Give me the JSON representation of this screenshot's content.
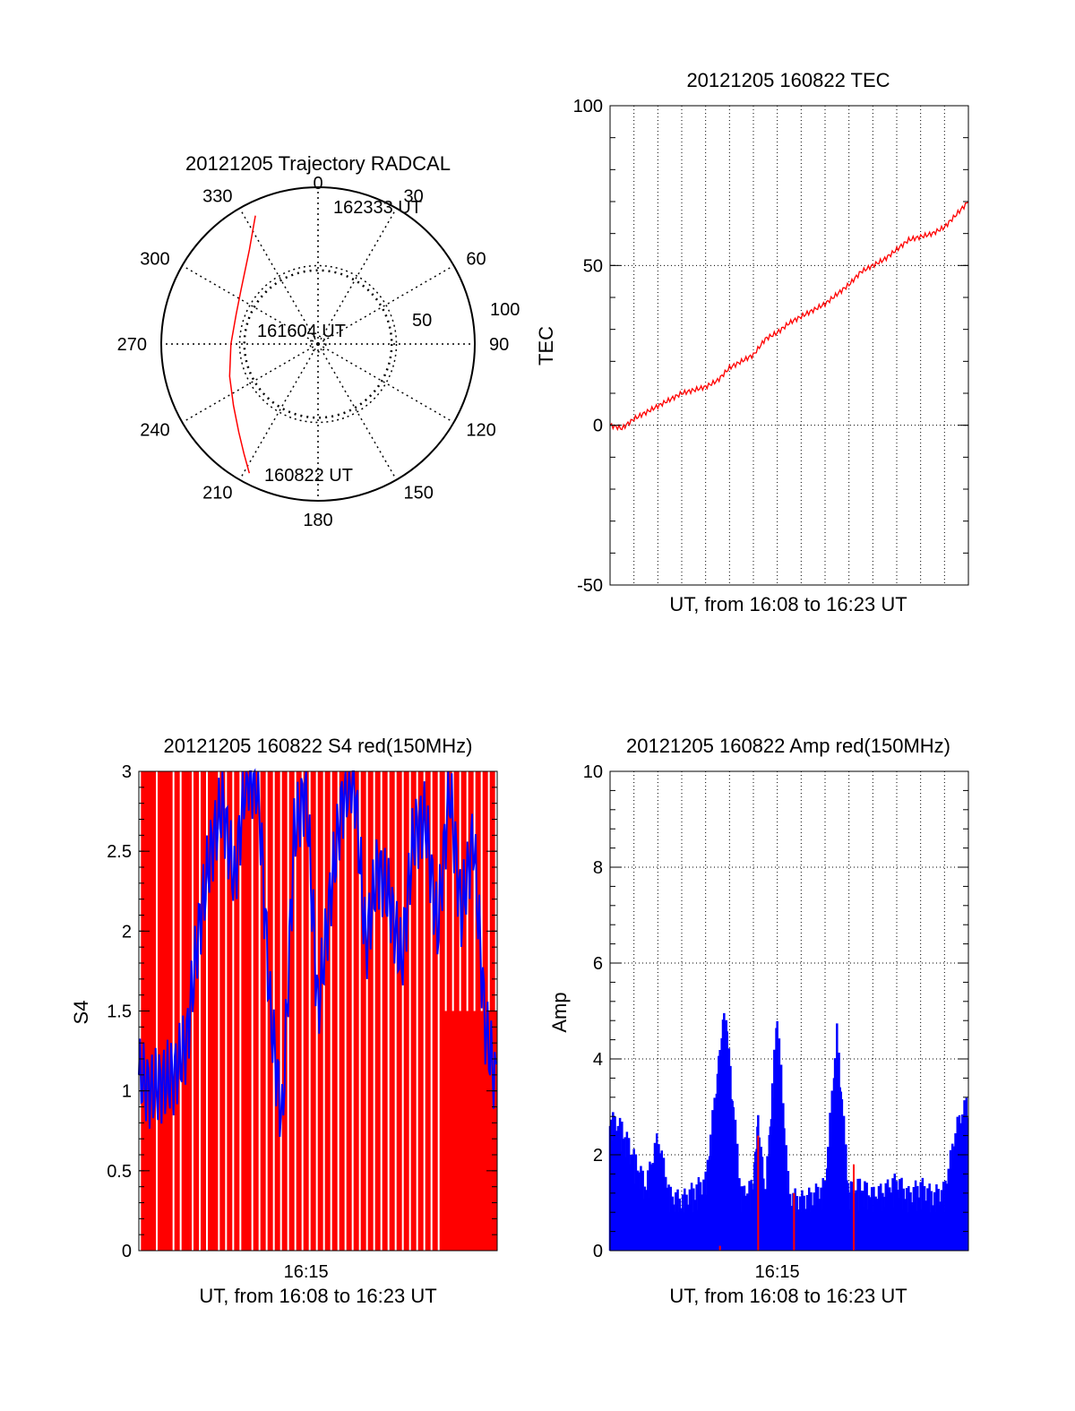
{
  "chart_data": [
    {
      "id": "trajectory",
      "type": "polar",
      "title": "20121205 Trajectory RADCAL",
      "angle_labels": [
        "0",
        "30",
        "60",
        "90",
        "120",
        "150",
        "180",
        "210",
        "240",
        "270",
        "300",
        "330"
      ],
      "radius_labels": [
        "50",
        "100"
      ],
      "rlim": [
        0,
        100
      ],
      "grid": true,
      "series": [
        {
          "color": "#ff0000",
          "points": [
            {
              "az": 208,
              "el": 6
            },
            {
              "az": 214,
              "el": 14
            },
            {
              "az": 222,
              "el": 22
            },
            {
              "az": 234,
              "el": 30
            },
            {
              "az": 250,
              "el": 36
            },
            {
              "az": 270,
              "el": 40
            },
            {
              "az": 290,
              "el": 40
            },
            {
              "az": 305,
              "el": 36
            },
            {
              "az": 316,
              "el": 30
            },
            {
              "az": 324,
              "el": 23
            },
            {
              "az": 330,
              "el": 15
            },
            {
              "az": 334,
              "el": 8
            }
          ]
        }
      ],
      "annotations": [
        {
          "text": "160822 UT",
          "az": 208,
          "el": 6
        },
        {
          "text": "161604 UT",
          "az": 300,
          "el": 80
        },
        {
          "text": "162333 UT",
          "az": 334,
          "el": 8
        }
      ]
    },
    {
      "id": "tec",
      "type": "line",
      "title": "20121205 160822 TEC",
      "xlabel": "UT, from 16:08 to 16:23 UT",
      "ylabel": "TEC",
      "xlim": [
        0,
        15
      ],
      "ylim": [
        -50,
        100
      ],
      "yticks": [
        "-50",
        "0",
        "50",
        "100"
      ],
      "grid": true,
      "series": [
        {
          "color": "#ff0000",
          "x": [
            0,
            0.5,
            1,
            1.5,
            2,
            2.5,
            3,
            3.5,
            4,
            4.5,
            5,
            5.5,
            6,
            6.5,
            7,
            7.5,
            8,
            8.5,
            9,
            9.5,
            10,
            10.5,
            11,
            11.5,
            12,
            12.5,
            13,
            13.5,
            14,
            14.5,
            15
          ],
          "y": [
            0,
            -1,
            2,
            4,
            6,
            8,
            10,
            11,
            12,
            14,
            18,
            20,
            22,
            27,
            29,
            32,
            34,
            36,
            38,
            41,
            44,
            48,
            50,
            52,
            55,
            58,
            59,
            60,
            62,
            66,
            70
          ]
        }
      ]
    },
    {
      "id": "s4",
      "type": "line",
      "title": "20121205 160822 S4 red(150MHz)",
      "xlabel": "UT, from 16:08 to 16:23 UT",
      "ylabel": "S4",
      "xlim": [
        0,
        15
      ],
      "ylim": [
        0,
        3
      ],
      "xticks": [
        {
          "x": 7,
          "label": "16:15"
        }
      ],
      "yticks": [
        "0",
        "0.5",
        "1",
        "1.5",
        "2",
        "2.5",
        "3"
      ],
      "series": [
        {
          "color": "#ff0000",
          "style": "saturated-spikes",
          "x": [
            0.2,
            0.4,
            0.6,
            0.9,
            1.1,
            1.3,
            1.6,
            1.9,
            2.1,
            2.4,
            2.7,
            3.0,
            3.2,
            3.5,
            3.8,
            4.1,
            4.4,
            4.6,
            4.9,
            5.2,
            5.5,
            5.8,
            6.1,
            6.4,
            6.7,
            7.0,
            7.3,
            7.6,
            7.9,
            8.2,
            8.5,
            8.8,
            9.1,
            9.4,
            9.7,
            10.0,
            10.3,
            10.6,
            10.9,
            11.2,
            11.5,
            11.8,
            12.1,
            12.4,
            12.7,
            13.0,
            13.3,
            13.6,
            13.9,
            14.2,
            14.5,
            14.8
          ]
        },
        {
          "color": "#0000ff",
          "x": [
            0,
            0.5,
            1,
            1.5,
            2,
            2.5,
            3,
            3.5,
            4,
            4.5,
            5,
            5.5,
            6,
            6.5,
            7,
            7.5,
            8,
            8.5,
            9,
            9.5,
            10,
            10.5,
            11,
            11.5,
            12,
            12.5,
            13,
            13.5,
            14,
            14.5,
            15
          ],
          "y": [
            1.1,
            1.0,
            1.05,
            1.1,
            1.3,
            2.0,
            2.5,
            2.8,
            2.3,
            3.0,
            2.9,
            1.5,
            0.8,
            2.6,
            2.9,
            1.5,
            2.2,
            2.8,
            3.0,
            1.9,
            2.4,
            2.2,
            1.8,
            2.6,
            2.7,
            2.0,
            2.9,
            2.1,
            2.6,
            1.4,
            1.0
          ]
        }
      ]
    },
    {
      "id": "amp",
      "type": "bar",
      "title": "20121205 160822 Amp red(150MHz)",
      "xlabel": "UT, from 16:08 to 16:23 UT",
      "ylabel": "Amp",
      "xlim": [
        0,
        15
      ],
      "ylim": [
        0,
        10
      ],
      "xticks": [
        {
          "x": 7,
          "label": "16:15"
        }
      ],
      "yticks": [
        "0",
        "2",
        "4",
        "6",
        "8",
        "10"
      ],
      "grid": true,
      "series": [
        {
          "color": "#0000ff",
          "x": [
            0,
            0.5,
            1,
            1.5,
            2,
            2.5,
            3,
            3.5,
            4,
            4.5,
            4.8,
            5,
            5.5,
            6,
            6.2,
            6.5,
            7,
            7.5,
            8,
            8.5,
            9,
            9.5,
            10,
            10.5,
            11,
            11.5,
            12,
            12.5,
            13,
            13.5,
            14,
            14.5,
            15
          ],
          "y": [
            2.6,
            2.4,
            1.8,
            1.2,
            2.2,
            1.0,
            0.9,
            1.1,
            1.3,
            3.5,
            4.8,
            3.8,
            1.0,
            1.2,
            2.5,
            1.0,
            4.8,
            1.0,
            0.9,
            1.0,
            1.2,
            4.4,
            1.1,
            1.2,
            1.0,
            1.1,
            1.3,
            1.0,
            1.2,
            1.0,
            1.1,
            2.4,
            3.0
          ]
        },
        {
          "color": "#ff0000",
          "x": [
            4.6,
            6.2,
            7.7,
            10.2
          ],
          "y": [
            0.1,
            2.4,
            1.2,
            1.8
          ]
        }
      ]
    }
  ]
}
